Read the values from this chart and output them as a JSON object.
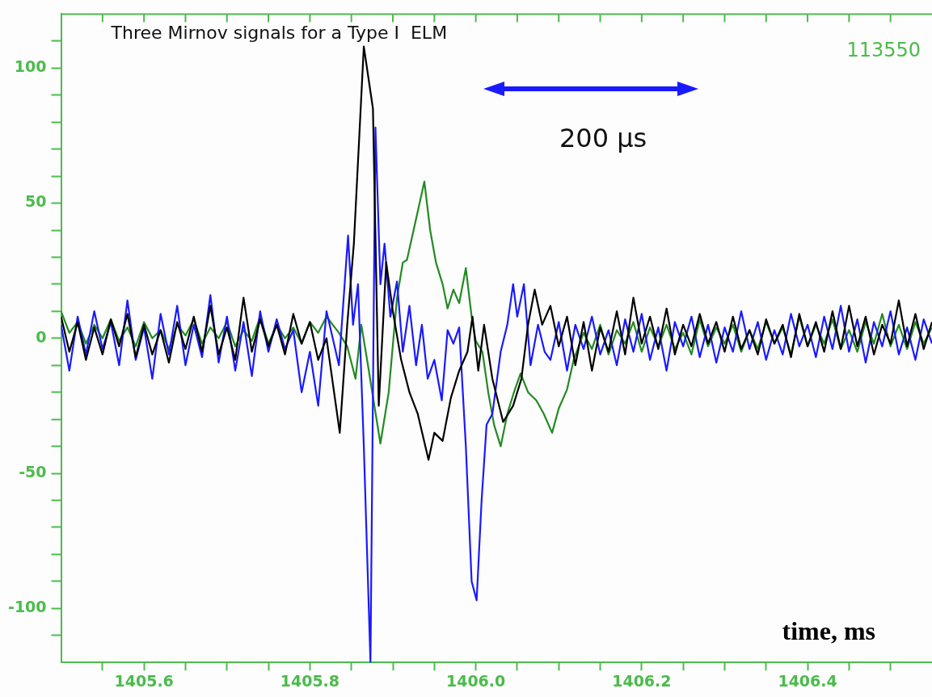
{
  "chart_data": {
    "type": "line",
    "title": "Three Mirnov signals for a Type I  ELM",
    "xlabel": "time, ms",
    "annotations": [
      "113550",
      "200 µs"
    ],
    "xlim": [
      1405.5,
      1406.55
    ],
    "xticks": [
      {
        "value": 1405.55,
        "label": null
      },
      1405.6,
      {
        "value": 1405.65,
        "label": null
      },
      {
        "value": 1405.7,
        "label": null
      },
      {
        "value": 1405.75,
        "label": null
      },
      1405.8,
      {
        "value": 1405.85,
        "label": null
      },
      {
        "value": 1405.9,
        "label": null
      },
      {
        "value": 1405.95,
        "label": null
      },
      {
        "value": 1406,
        "label": "1406.0"
      },
      {
        "value": 1406.05,
        "label": null
      },
      {
        "value": 1406.1,
        "label": null
      },
      {
        "value": 1406.15,
        "label": null
      },
      1406.2,
      {
        "value": 1406.25,
        "label": null
      },
      {
        "value": 1406.3,
        "label": null
      },
      {
        "value": 1406.35,
        "label": null
      },
      1406.4,
      {
        "value": 1406.45,
        "label": null
      },
      {
        "value": 1406.5,
        "label": null
      }
    ],
    "ylim": [
      -120,
      120
    ],
    "yticks": [
      {
        "value": -110,
        "label": null
      },
      -100,
      {
        "value": -90,
        "label": null
      },
      {
        "value": -80,
        "label": null
      },
      {
        "value": -70,
        "label": null
      },
      {
        "value": -60,
        "label": null
      },
      -50,
      {
        "value": -40,
        "label": null
      },
      {
        "value": -30,
        "label": null
      },
      {
        "value": -20,
        "label": null
      },
      {
        "value": -10,
        "label": null
      },
      0,
      {
        "value": 10,
        "label": null
      },
      {
        "value": 20,
        "label": null
      },
      {
        "value": 30,
        "label": null
      },
      {
        "value": 40,
        "label": null
      },
      50,
      {
        "value": 60,
        "label": null
      },
      {
        "value": 70,
        "label": null
      },
      {
        "value": 80,
        "label": null
      },
      {
        "value": 90,
        "label": null
      },
      100,
      {
        "value": 110,
        "label": null
      }
    ],
    "marker": "none",
    "line_style": "solid",
    "series": [
      {
        "color": "#228b22",
        "x": [
          1405.5,
          1405.51,
          1405.52,
          1405.53,
          1405.54,
          1405.55,
          1405.56,
          1405.57,
          1405.58,
          1405.59,
          1405.6,
          1405.61,
          1405.62,
          1405.63,
          1405.64,
          1405.65,
          1405.66,
          1405.67,
          1405.68,
          1405.69,
          1405.7,
          1405.71,
          1405.72,
          1405.73,
          1405.74,
          1405.75,
          1405.76,
          1405.77,
          1405.78,
          1405.79,
          1405.8,
          1405.81,
          1405.82,
          1405.835,
          1405.845,
          1405.855,
          1405.862,
          1405.87,
          1405.885,
          1405.895,
          1405.905,
          1405.912,
          1405.917,
          1405.925,
          1405.938,
          1405.945,
          1405.952,
          1405.96,
          1405.966,
          1405.973,
          1405.98,
          1405.988,
          1405.995,
          1406,
          1406.008,
          1406.015,
          1406.022,
          1406.03,
          1406.038,
          1406.046,
          1406.054,
          1406.063,
          1406.073,
          1406.082,
          1406.092,
          1406.1,
          1406.11,
          1406.118,
          1406.13,
          1406.14,
          1406.15,
          1406.16,
          1406.17,
          1406.18,
          1406.19,
          1406.2,
          1406.21,
          1406.22,
          1406.23,
          1406.24,
          1406.25,
          1406.26,
          1406.27,
          1406.28,
          1406.29,
          1406.3,
          1406.31,
          1406.32,
          1406.33,
          1406.34,
          1406.35,
          1406.36,
          1406.37,
          1406.38,
          1406.39,
          1406.4,
          1406.41,
          1406.42,
          1406.43,
          1406.44,
          1406.45,
          1406.46,
          1406.47,
          1406.48,
          1406.49,
          1406.5,
          1406.51,
          1406.52,
          1406.53,
          1406.54,
          1406.55
        ],
        "values": [
          10,
          2,
          6,
          -2,
          5,
          0,
          7,
          -1,
          4,
          -3,
          6,
          0,
          3,
          -4,
          5,
          1,
          7,
          -2,
          4,
          0,
          6,
          -3,
          3,
          -1,
          8,
          -2,
          5,
          0,
          4,
          -2,
          6,
          2,
          8,
          2,
          -3,
          -15,
          5,
          -10,
          -39,
          -20,
          15,
          28,
          29,
          40,
          58,
          40,
          28,
          20,
          11,
          18,
          13,
          26,
          8,
          -1,
          -5,
          -20,
          -32,
          -40,
          -28,
          -20,
          -13,
          -20,
          -23,
          -28,
          -35,
          -26,
          -19,
          -8,
          2,
          -4,
          5,
          -6,
          3,
          -2,
          6,
          -5,
          4,
          -3,
          5,
          -4,
          2,
          -6,
          7,
          -3,
          4,
          -2,
          5,
          -5,
          3,
          -4,
          6,
          -2,
          4,
          -6,
          8,
          -3,
          5,
          -2,
          7,
          -4,
          3,
          -5,
          6,
          -2,
          9,
          -3,
          5,
          -4,
          6,
          -2,
          4
        ]
      },
      {
        "color": "#1a1aff",
        "x": [
          1405.5,
          1405.51,
          1405.52,
          1405.53,
          1405.54,
          1405.55,
          1405.56,
          1405.57,
          1405.58,
          1405.59,
          1405.6,
          1405.61,
          1405.62,
          1405.63,
          1405.64,
          1405.65,
          1405.66,
          1405.67,
          1405.68,
          1405.69,
          1405.7,
          1405.71,
          1405.72,
          1405.73,
          1405.74,
          1405.75,
          1405.76,
          1405.77,
          1405.78,
          1405.79,
          1405.8,
          1405.81,
          1405.82,
          1405.835,
          1405.846,
          1405.852,
          1405.858,
          1405.865,
          1405.873,
          1405.879,
          1405.885,
          1405.89,
          1405.897,
          1405.905,
          1405.912,
          1405.92,
          1405.928,
          1405.935,
          1405.942,
          1405.95,
          1405.959,
          1405.966,
          1405.973,
          1405.98,
          1405.988,
          1405.995,
          1406.001,
          1406.007,
          1406.013,
          1406.02,
          1406.03,
          1406.038,
          1406.045,
          1406.05,
          1406.058,
          1406.066,
          1406.075,
          1406.083,
          1406.09,
          1406.1,
          1406.11,
          1406.12,
          1406.13,
          1406.14,
          1406.15,
          1406.16,
          1406.17,
          1406.18,
          1406.19,
          1406.2,
          1406.21,
          1406.22,
          1406.23,
          1406.24,
          1406.25,
          1406.26,
          1406.27,
          1406.28,
          1406.29,
          1406.3,
          1406.31,
          1406.32,
          1406.33,
          1406.34,
          1406.35,
          1406.36,
          1406.37,
          1406.38,
          1406.39,
          1406.4,
          1406.41,
          1406.42,
          1406.43,
          1406.44,
          1406.45,
          1406.46,
          1406.47,
          1406.48,
          1406.49,
          1406.5,
          1406.51,
          1406.52,
          1406.53,
          1406.54,
          1406.55
        ],
        "values": [
          5,
          -12,
          8,
          -6,
          10,
          -4,
          6,
          -10,
          14,
          -8,
          4,
          -15,
          9,
          -6,
          12,
          -10,
          5,
          -7,
          16,
          -9,
          8,
          -12,
          6,
          -14,
          10,
          -5,
          7,
          -4,
          3,
          -20,
          -5,
          -25,
          10,
          -10,
          38,
          5,
          20,
          -40,
          -120,
          78,
          20,
          35,
          8,
          21,
          -5,
          12,
          -10,
          5,
          -15,
          -8,
          -23,
          3,
          -2,
          4,
          -40,
          -90,
          -97,
          -60,
          -32,
          -28,
          -5,
          5,
          20,
          8,
          20,
          -10,
          5,
          -5,
          -8,
          6,
          -12,
          5,
          -4,
          8,
          -6,
          3,
          -10,
          7,
          -5,
          9,
          -8,
          4,
          -12,
          6,
          -3,
          8,
          -7,
          5,
          -9,
          4,
          -5,
          10,
          -4,
          6,
          -8,
          3,
          -6,
          9,
          -3,
          5,
          -7,
          8,
          -4,
          12,
          -5,
          7,
          -9,
          6,
          -3,
          10,
          -6,
          4,
          -8,
          7,
          -2
        ]
      },
      {
        "color": "#000000",
        "x": [
          1405.5,
          1405.51,
          1405.52,
          1405.53,
          1405.54,
          1405.55,
          1405.56,
          1405.57,
          1405.58,
          1405.59,
          1405.6,
          1405.61,
          1405.62,
          1405.63,
          1405.64,
          1405.65,
          1405.66,
          1405.67,
          1405.68,
          1405.69,
          1405.7,
          1405.71,
          1405.72,
          1405.73,
          1405.74,
          1405.75,
          1405.76,
          1405.77,
          1405.78,
          1405.79,
          1405.8,
          1405.81,
          1405.82,
          1405.836,
          1405.845,
          1405.853,
          1405.865,
          1405.876,
          1405.883,
          1405.892,
          1405.9,
          1405.91,
          1405.92,
          1405.93,
          1405.943,
          1405.95,
          1405.96,
          1405.97,
          1405.98,
          1405.99,
          1405.996,
          1406.003,
          1406.01,
          1406.02,
          1406.033,
          1406.045,
          1406.055,
          1406.063,
          1406.071,
          1406.08,
          1406.09,
          1406.1,
          1406.11,
          1406.12,
          1406.13,
          1406.14,
          1406.15,
          1406.16,
          1406.17,
          1406.18,
          1406.19,
          1406.2,
          1406.21,
          1406.22,
          1406.23,
          1406.24,
          1406.25,
          1406.26,
          1406.27,
          1406.28,
          1406.29,
          1406.3,
          1406.31,
          1406.32,
          1406.33,
          1406.34,
          1406.35,
          1406.36,
          1406.37,
          1406.38,
          1406.39,
          1406.4,
          1406.41,
          1406.42,
          1406.43,
          1406.44,
          1406.45,
          1406.46,
          1406.47,
          1406.48,
          1406.49,
          1406.5,
          1406.51,
          1406.52,
          1406.53,
          1406.54,
          1406.55
        ],
        "values": [
          8,
          -5,
          6,
          -8,
          4,
          -6,
          7,
          -3,
          9,
          -7,
          5,
          -6,
          3,
          -9,
          6,
          -4,
          8,
          -5,
          12,
          -6,
          4,
          -8,
          15,
          -5,
          7,
          -3,
          5,
          -6,
          9,
          -2,
          6,
          -8,
          0,
          -35,
          5,
          35,
          108,
          85,
          -25,
          28,
          10,
          -8,
          -20,
          -28,
          -45,
          -35,
          -38,
          -22,
          -12,
          -5,
          8,
          -12,
          5,
          -15,
          -31,
          -25,
          -15,
          5,
          18,
          5,
          12,
          -3,
          8,
          -10,
          6,
          -12,
          4,
          -5,
          10,
          -6,
          15,
          -2,
          8,
          -4,
          11,
          -6,
          5,
          -3,
          9,
          -2,
          6,
          -5,
          8,
          -4,
          3,
          -6,
          7,
          -2,
          5,
          -7,
          9,
          -3,
          6,
          -5,
          10,
          -4,
          12,
          -3,
          8,
          -6,
          5,
          -2,
          14,
          -3,
          9,
          -4,
          6
        ]
      }
    ]
  }
}
